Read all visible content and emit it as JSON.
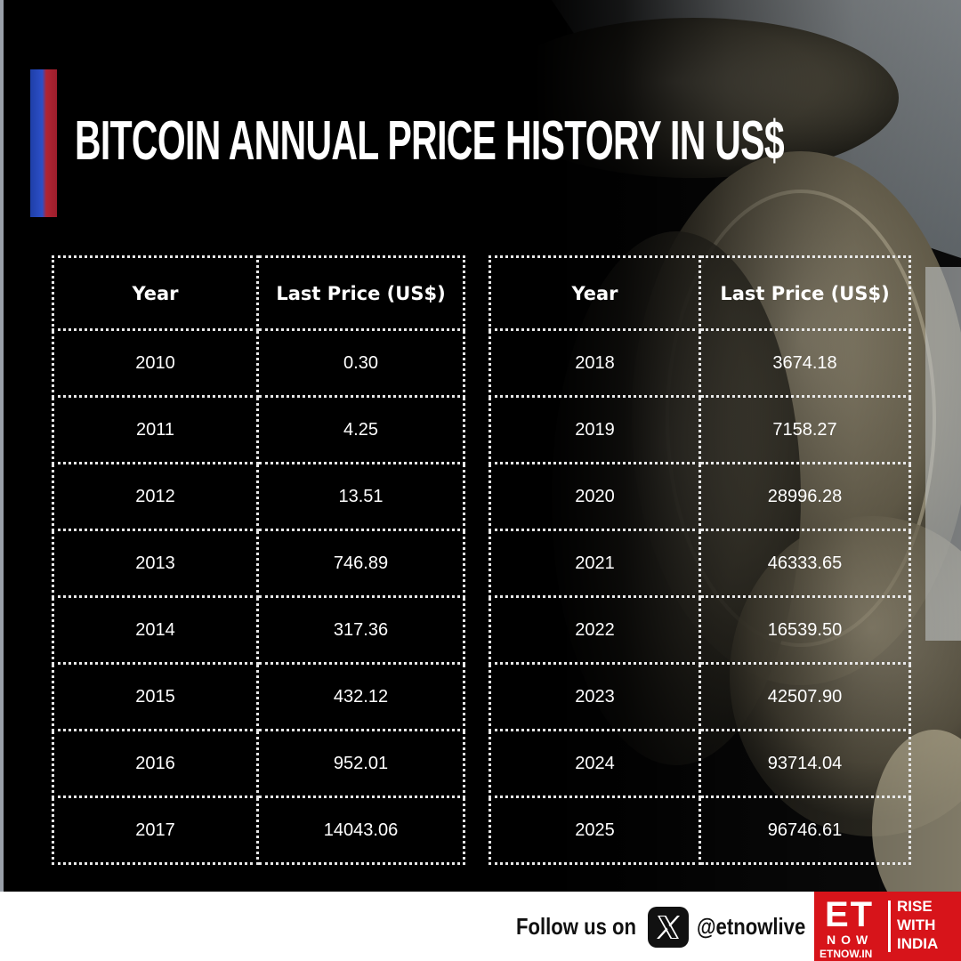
{
  "header": {
    "title": "BITCOIN ANNUAL PRICE HISTORY IN US$"
  },
  "chart_data": {
    "type": "table",
    "columns": [
      "Year",
      "Last Price (US$)"
    ],
    "rows": [
      [
        "2010",
        "0.30"
      ],
      [
        "2011",
        "4.25"
      ],
      [
        "2012",
        "13.51"
      ],
      [
        "2013",
        "746.89"
      ],
      [
        "2014",
        "317.36"
      ],
      [
        "2015",
        "432.12"
      ],
      [
        "2016",
        "952.01"
      ],
      [
        "2017",
        "14043.06"
      ],
      [
        "2018",
        "3674.18"
      ],
      [
        "2019",
        "7158.27"
      ],
      [
        "2020",
        "28996.28"
      ],
      [
        "2021",
        "46333.65"
      ],
      [
        "2022",
        "16539.50"
      ],
      [
        "2023",
        "42507.90"
      ],
      [
        "2024",
        "93714.04"
      ],
      [
        "2025",
        "96746.61"
      ]
    ]
  },
  "footer": {
    "follow_text": "Follow us on",
    "handle": "@etnowlive",
    "social_icon": "x-logo-icon",
    "brand": {
      "et": "ET",
      "now": "NOW",
      "url": "ETNOW.IN",
      "tagline": "RISE\nWITH\nINDIA"
    }
  },
  "colors": {
    "background": "#000000",
    "accent_blue": "#2c4fc8",
    "accent_red": "#b12433",
    "brand_red": "#d7141a",
    "text": "#ffffff"
  }
}
